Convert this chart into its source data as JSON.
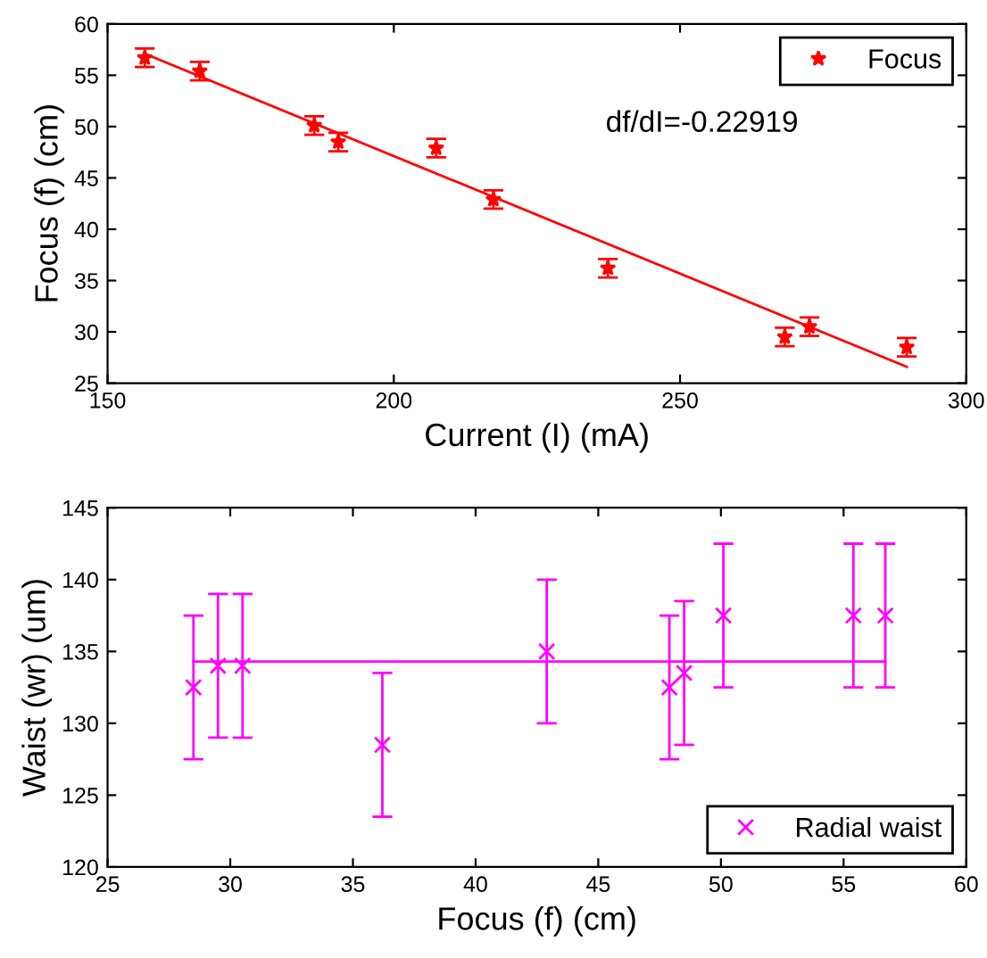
{
  "chart_data": [
    {
      "type": "scatter",
      "xlabel": "Current (I) (mA)",
      "ylabel": "Focus (f) (cm)",
      "xlim": [
        150,
        300
      ],
      "xticks": [
        150,
        200,
        250,
        300
      ],
      "ylim": [
        25,
        60
      ],
      "yticks": [
        25,
        30,
        35,
        40,
        45,
        50,
        55,
        60
      ],
      "grid": false,
      "legend": "top right",
      "annotations": [
        "df/dI=-0.22919"
      ],
      "series": [
        {
          "name": "Focus",
          "color": "#ff0000",
          "marker": "star",
          "x": [
            156.5,
            166.1,
            186.1,
            190.3,
            207.4,
            217.4,
            237.4,
            268.3,
            272.6,
            289.6
          ],
          "values": [
            56.7,
            55.4,
            50.1,
            48.5,
            47.9,
            42.9,
            36.2,
            29.5,
            30.5,
            28.5
          ],
          "errors": [
            0.9,
            0.9,
            0.9,
            0.9,
            0.9,
            0.9,
            0.9,
            0.9,
            0.9,
            0.9
          ]
        },
        {
          "type": "line",
          "color": "#ff0000",
          "x": [
            156.5,
            289.6
          ],
          "values": [
            57.1,
            26.6
          ]
        }
      ]
    },
    {
      "type": "scatter",
      "xlabel": "Focus (f) (cm)",
      "ylabel": "Waist (wr) (um)",
      "xlim": [
        25,
        60
      ],
      "xticks": [
        25,
        30,
        35,
        40,
        45,
        50,
        55,
        60
      ],
      "ylim": [
        120,
        145
      ],
      "yticks": [
        120,
        125,
        130,
        135,
        140,
        145
      ],
      "grid": false,
      "legend": "bottom right",
      "series": [
        {
          "name": "Radial waist",
          "color": "#ff00ff",
          "marker": "cross",
          "x": [
            28.5,
            29.5,
            30.5,
            36.2,
            42.9,
            47.9,
            48.5,
            50.1,
            55.4,
            56.7
          ],
          "values": [
            132.5,
            134,
            134,
            128.5,
            135,
            132.5,
            133.5,
            137.5,
            137.5,
            137.5
          ],
          "errors": [
            5,
            5,
            5,
            5,
            5,
            5,
            5,
            5,
            5,
            5
          ]
        },
        {
          "type": "line",
          "color": "#ff00ff",
          "x": [
            28.5,
            56.7
          ],
          "values": [
            134.3,
            134.3
          ]
        }
      ]
    }
  ]
}
